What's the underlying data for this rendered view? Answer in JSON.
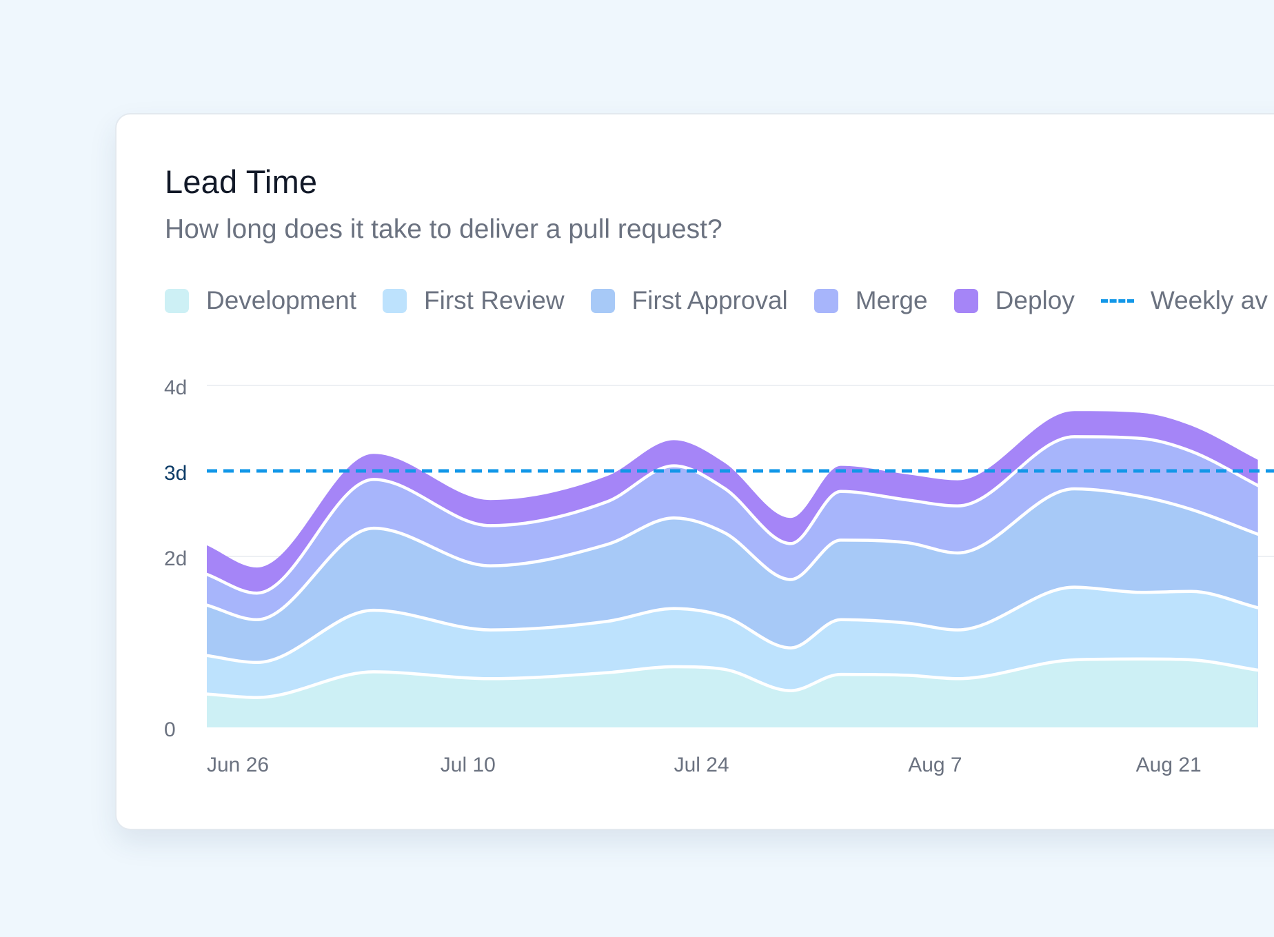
{
  "card": {
    "title": "Lead Time",
    "subtitle": "How long does it take to deliver a pull request?"
  },
  "legend": {
    "items": [
      {
        "label": "Development",
        "color": "#cdf0f5",
        "kind": "swatch"
      },
      {
        "label": "First Review",
        "color": "#bde2fd",
        "kind": "swatch"
      },
      {
        "label": "First Approval",
        "color": "#a7c9f7",
        "kind": "swatch"
      },
      {
        "label": "Merge",
        "color": "#a7b5fb",
        "kind": "swatch"
      },
      {
        "label": "Deploy",
        "color": "#a585f7",
        "kind": "swatch"
      },
      {
        "label": "Weekly av",
        "color": "#1297e8",
        "kind": "dash"
      }
    ]
  },
  "chart_data": {
    "type": "area",
    "stacked": true,
    "y_unit": "days",
    "ylim": [
      0,
      4
    ],
    "x_dates": [
      "2023-06-26",
      "2023-06-29",
      "2023-07-06",
      "2023-07-13",
      "2023-07-20",
      "2023-07-24",
      "2023-07-27",
      "2023-07-31",
      "2023-08-03",
      "2023-08-07",
      "2023-08-10",
      "2023-08-17",
      "2023-08-21",
      "2023-08-24",
      "2023-08-28"
    ],
    "yticks": [
      {
        "label": "4d",
        "value": 4,
        "highlight": false
      },
      {
        "label": "3d",
        "value": 3,
        "highlight": true
      },
      {
        "label": "2d",
        "value": 2,
        "highlight": false
      },
      {
        "label": "0",
        "value": 0,
        "highlight": false
      }
    ],
    "xticks": [
      {
        "label": "Jun 26",
        "date": "2023-06-26"
      },
      {
        "label": "Jul 10",
        "date": "2023-07-10"
      },
      {
        "label": "Jul 24",
        "date": "2023-07-24"
      },
      {
        "label": "Aug 7",
        "date": "2023-08-07"
      },
      {
        "label": "Aug 21",
        "date": "2023-08-21"
      }
    ],
    "series": [
      {
        "name": "Development",
        "color": "#cdf0f5",
        "values": [
          0.39,
          0.35,
          0.65,
          0.57,
          0.64,
          0.71,
          0.68,
          0.43,
          0.62,
          0.61,
          0.57,
          0.79,
          0.8,
          0.79,
          0.67
        ]
      },
      {
        "name": "First Review",
        "color": "#bde2fd",
        "values": [
          0.45,
          0.41,
          0.72,
          0.57,
          0.6,
          0.68,
          0.62,
          0.5,
          0.64,
          0.61,
          0.57,
          0.85,
          0.78,
          0.8,
          0.73
        ]
      },
      {
        "name": "First Approval",
        "color": "#a7c9f7",
        "values": [
          0.59,
          0.5,
          0.96,
          0.75,
          0.9,
          1.06,
          0.98,
          0.8,
          0.93,
          0.94,
          0.9,
          1.15,
          1.12,
          0.96,
          0.86
        ]
      },
      {
        "name": "Merge",
        "color": "#a7b5fb",
        "values": [
          0.36,
          0.31,
          0.57,
          0.47,
          0.5,
          0.61,
          0.52,
          0.42,
          0.57,
          0.5,
          0.55,
          0.61,
          0.68,
          0.68,
          0.57
        ]
      },
      {
        "name": "Deploy",
        "color": "#a585f7",
        "values": [
          0.34,
          0.3,
          0.3,
          0.3,
          0.3,
          0.3,
          0.3,
          0.3,
          0.3,
          0.3,
          0.3,
          0.3,
          0.3,
          0.3,
          0.3
        ]
      }
    ],
    "reference_line": {
      "name": "Weekly av",
      "value": 3,
      "style": "dashed",
      "color": "#1297e8"
    },
    "grid": {
      "horizontal": true,
      "vertical": false
    },
    "legend_position": "top-left"
  }
}
